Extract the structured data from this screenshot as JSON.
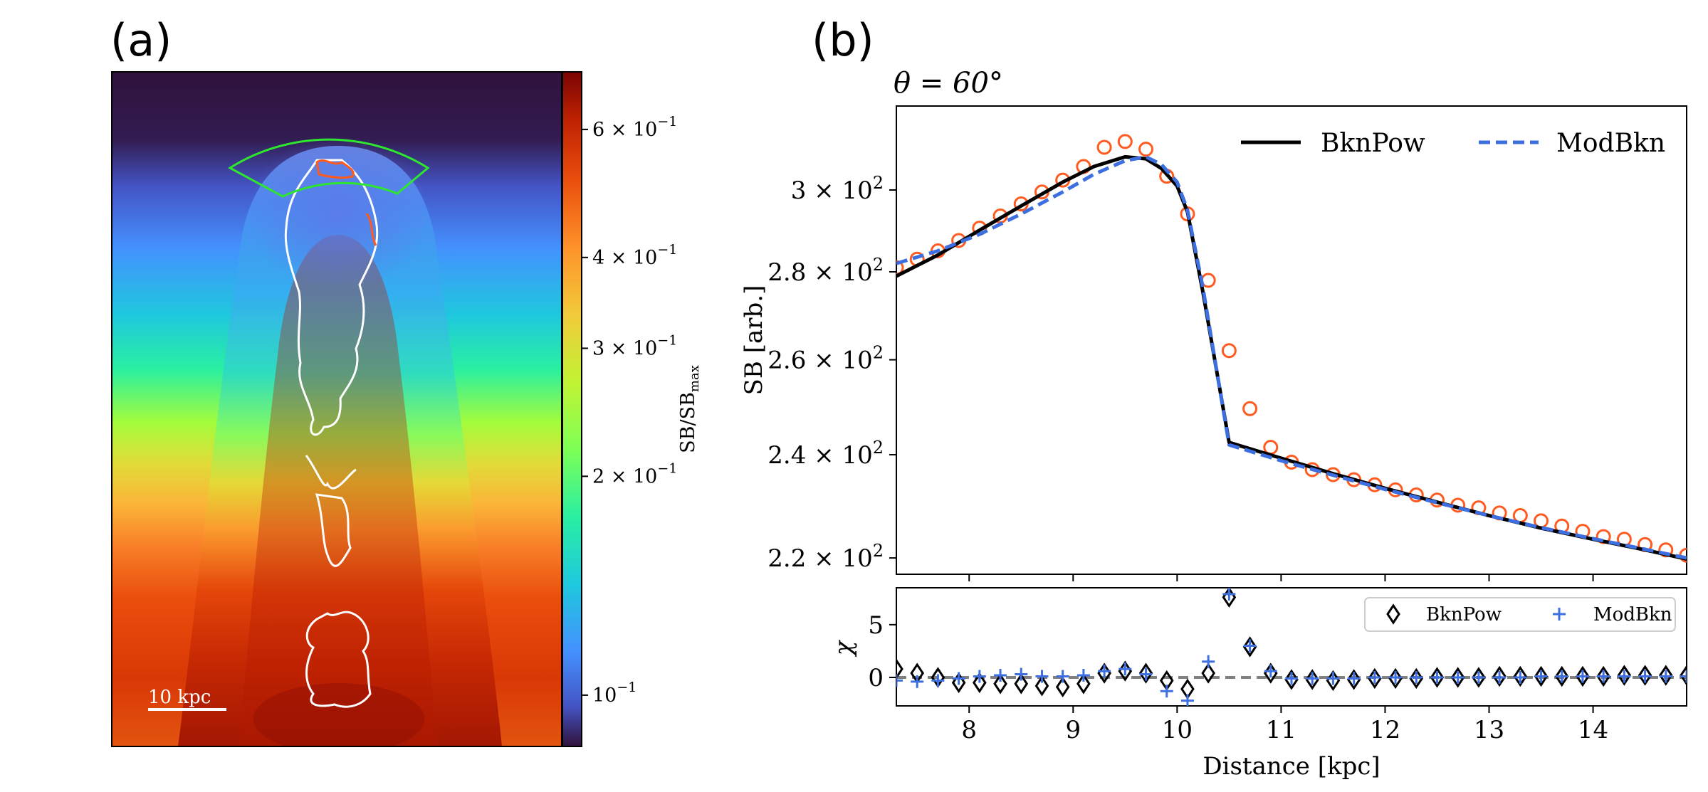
{
  "panel_a": {
    "label": "(a)",
    "scalebar_label": "10 kpc",
    "colorbar": {
      "label": "SB/SB",
      "label_sub": "max",
      "ticks": [
        {
          "value": 0.6,
          "mant": "6 × 10",
          "exp": "−1"
        },
        {
          "value": 0.4,
          "mant": "4 × 10",
          "exp": "−1"
        },
        {
          "value": 0.3,
          "mant": "3 × 10",
          "exp": "−1"
        },
        {
          "value": 0.2,
          "mant": "2 × 10",
          "exp": "−1"
        },
        {
          "value": 0.1,
          "mant": "10",
          "exp": "−1"
        }
      ],
      "colormap": [
        "#30123b",
        "#4454c4",
        "#4490fe",
        "#1fc8de",
        "#29efa2",
        "#7dff56",
        "#c1f334",
        "#f1ca3a",
        "#fe922a",
        "#ea4e0d",
        "#be2102",
        "#7a0403"
      ]
    }
  },
  "chart_data": [
    {
      "type": "line",
      "panel": "(b) top",
      "title": "θ = 60°",
      "ylabel": "SB [arb.]",
      "yscale": "log",
      "xlim": [
        7.3,
        14.9
      ],
      "ylim": [
        217,
        322
      ],
      "yticks": [
        {
          "value": 220,
          "mant": "2.2 × 10",
          "exp": "2"
        },
        {
          "value": 240,
          "mant": "2.4 × 10",
          "exp": "2"
        },
        {
          "value": 260,
          "mant": "2.6 × 10",
          "exp": "2"
        },
        {
          "value": 280,
          "mant": "2.8 × 10",
          "exp": "2"
        },
        {
          "value": 300,
          "mant": "3 × 10",
          "exp": "2"
        }
      ],
      "legend": [
        "BknPow",
        "ModBkn"
      ],
      "series": [
        {
          "name": "data",
          "marker": "circle",
          "color": "#ff5a1f",
          "x": [
            7.3,
            7.5,
            7.7,
            7.9,
            8.1,
            8.3,
            8.5,
            8.7,
            8.9,
            9.1,
            9.3,
            9.5,
            9.7,
            9.9,
            10.1,
            10.3,
            10.5,
            10.7,
            10.9,
            11.1,
            11.3,
            11.5,
            11.7,
            11.9,
            12.1,
            12.3,
            12.5,
            12.7,
            12.9,
            13.1,
            13.3,
            13.5,
            13.7,
            13.9,
            14.1,
            14.3,
            14.5,
            14.7,
            14.9
          ],
          "y": [
            281,
            283,
            285,
            287.5,
            290.5,
            293.5,
            296.5,
            299.5,
            302.5,
            306,
            311,
            312.5,
            310.5,
            303.5,
            294,
            278,
            262,
            249.5,
            241.5,
            238.5,
            237,
            236,
            235,
            234,
            233,
            232,
            231,
            230,
            229.5,
            228.5,
            228,
            227,
            226,
            225,
            224,
            223.5,
            222.5,
            221.5,
            220.5
          ]
        },
        {
          "name": "BknPow",
          "style": "solid",
          "color": "#000000",
          "x": [
            7.3,
            7.7,
            8.1,
            8.5,
            8.9,
            9.2,
            9.5,
            9.7,
            9.85,
            10.0,
            10.1,
            10.25,
            10.4,
            10.5,
            11.0,
            11.5,
            12.0,
            12.5,
            13.0,
            13.5,
            14.0,
            14.5,
            14.9
          ],
          "y": [
            279,
            284,
            290,
            296,
            302,
            306,
            308.5,
            308,
            305.5,
            301,
            294.5,
            275,
            255,
            242.5,
            239.3,
            236.2,
            233.3,
            230.6,
            228.0,
            225.6,
            223.5,
            221.5,
            219.8
          ]
        },
        {
          "name": "ModBkn",
          "style": "dashed",
          "color": "#3d6fe0",
          "x": [
            7.3,
            7.7,
            8.1,
            8.5,
            8.9,
            9.2,
            9.5,
            9.7,
            9.85,
            10.0,
            10.1,
            10.25,
            10.4,
            10.5,
            11.0,
            11.5,
            12.0,
            12.5,
            13.0,
            13.5,
            14.0,
            14.5,
            14.9
          ],
          "y": [
            282,
            285,
            289,
            294,
            299.5,
            304,
            307.5,
            308.5,
            306.5,
            302,
            295,
            276,
            255,
            242,
            238.8,
            235.9,
            233.1,
            230.5,
            228.0,
            225.7,
            223.6,
            221.6,
            220.0
          ]
        }
      ]
    },
    {
      "type": "scatter",
      "panel": "(b) bottom",
      "ylabel": "χ",
      "xlabel": "Distance [kpc]",
      "xlim": [
        7.3,
        14.9
      ],
      "ylim": [
        -2.7,
        8.5
      ],
      "xticks": [
        8,
        9,
        10,
        11,
        12,
        13,
        14
      ],
      "yticks": [
        0,
        5
      ],
      "zero_line": 0,
      "legend": [
        "BknPow",
        "ModBkn"
      ],
      "series": [
        {
          "name": "BknPow",
          "marker": "diamond",
          "color": "#000000",
          "x": [
            7.3,
            7.5,
            7.7,
            7.9,
            8.1,
            8.3,
            8.5,
            8.7,
            8.9,
            9.1,
            9.3,
            9.5,
            9.7,
            9.9,
            10.1,
            10.3,
            10.5,
            10.7,
            10.9,
            11.1,
            11.3,
            11.5,
            11.7,
            11.9,
            12.1,
            12.3,
            12.5,
            12.7,
            12.9,
            13.1,
            13.3,
            13.5,
            13.7,
            13.9,
            14.1,
            14.3,
            14.5,
            14.7,
            14.9
          ],
          "y": [
            0.8,
            0.4,
            0.0,
            -0.5,
            -0.5,
            -0.6,
            -0.6,
            -0.8,
            -0.9,
            -0.6,
            0.4,
            0.6,
            0.4,
            -0.3,
            -1.1,
            0.4,
            7.6,
            2.9,
            0.4,
            -0.2,
            -0.2,
            -0.3,
            -0.2,
            -0.1,
            -0.1,
            -0.1,
            0.0,
            0.0,
            0.0,
            0.1,
            0.1,
            0.1,
            0.1,
            0.1,
            0.1,
            0.2,
            0.2,
            0.2,
            0.2
          ]
        },
        {
          "name": "ModBkn",
          "marker": "plus",
          "color": "#3d6fe0",
          "x": [
            7.3,
            7.5,
            7.7,
            7.9,
            8.1,
            8.3,
            8.5,
            8.7,
            8.9,
            9.1,
            9.3,
            9.5,
            9.7,
            9.9,
            10.1,
            10.3,
            10.5,
            10.7,
            10.9,
            11.1,
            11.3,
            11.5,
            11.7,
            11.9,
            12.1,
            12.3,
            12.5,
            12.7,
            12.9,
            13.1,
            13.3,
            13.5,
            13.7,
            13.9,
            14.1,
            14.3,
            14.5,
            14.7,
            14.9
          ],
          "y": [
            -0.3,
            -0.4,
            -0.3,
            -0.1,
            0.1,
            0.2,
            0.3,
            0.1,
            0.1,
            0.2,
            0.6,
            0.8,
            0.3,
            -1.3,
            -2.2,
            1.5,
            7.9,
            3.0,
            0.6,
            -0.1,
            -0.1,
            -0.1,
            -0.1,
            0.0,
            0.0,
            0.0,
            0.0,
            0.0,
            0.0,
            0.0,
            0.0,
            0.1,
            0.1,
            0.1,
            0.1,
            0.1,
            0.1,
            0.1,
            0.1
          ]
        }
      ]
    }
  ],
  "panel_b": {
    "label": "(b)"
  }
}
